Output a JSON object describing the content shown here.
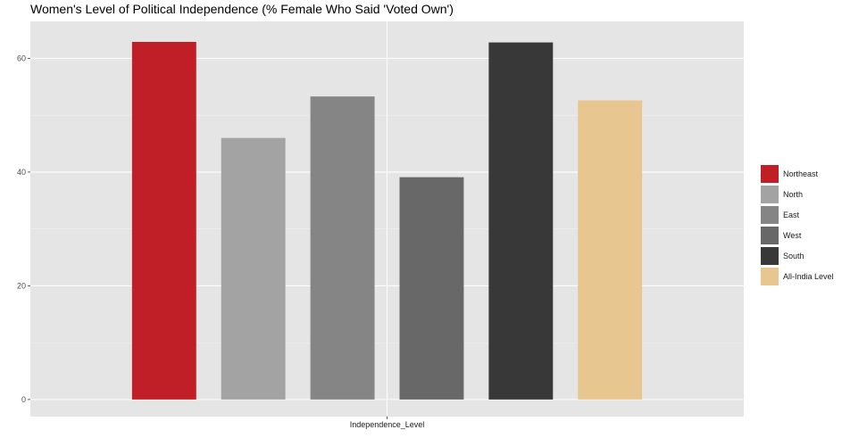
{
  "chart_data": {
    "type": "bar",
    "title": "Women's Level of Political Independence (% Female Who Said 'Voted Own')",
    "xlabel": "Independence_Level",
    "ylabel": "",
    "categories": [
      "Independence_Level"
    ],
    "series": [
      {
        "name": "Northeast",
        "values": [
          62.9
        ],
        "color": "#C01F27"
      },
      {
        "name": "North",
        "values": [
          46.0
        ],
        "color": "#A3A3A3"
      },
      {
        "name": "East",
        "values": [
          53.3
        ],
        "color": "#858585"
      },
      {
        "name": "West",
        "values": [
          39.1
        ],
        "color": "#686868"
      },
      {
        "name": "South",
        "values": [
          62.8
        ],
        "color": "#383838"
      },
      {
        "name": "All-India Level",
        "values": [
          52.6
        ],
        "color": "#E8C690"
      }
    ],
    "ylim": [
      -3,
      66.5
    ],
    "yticks": [
      0,
      20,
      40,
      60
    ],
    "grid": true,
    "legend_position": "right"
  }
}
